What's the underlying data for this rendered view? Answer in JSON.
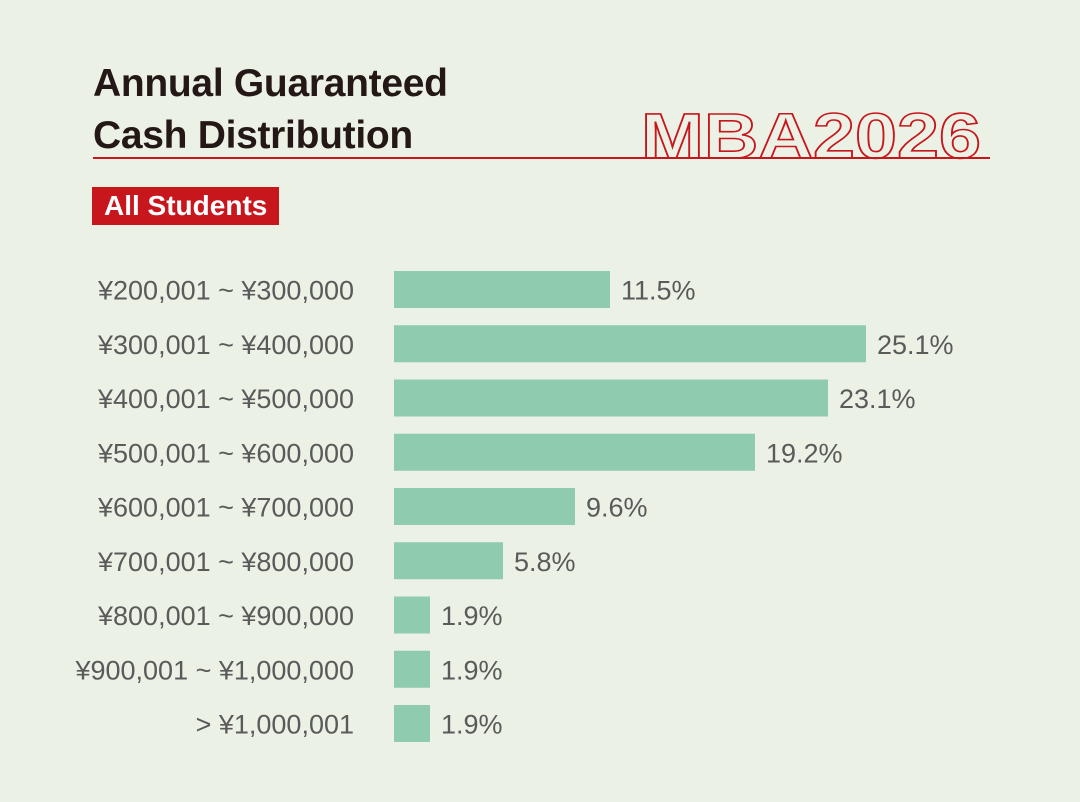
{
  "header": {
    "title_line1": "Annual Guaranteed",
    "title_line2": "Cash Distribution",
    "watermark": "MBA2026",
    "badge": "All Students"
  },
  "colors": {
    "background": "#ecf1e5",
    "bar": "#8fcbad",
    "accent": "#c8161d",
    "label_text": "#5a5a5a",
    "title_text": "#231815"
  },
  "chart_data": {
    "type": "bar",
    "orientation": "horizontal",
    "categories": [
      "¥200,001 ~ ¥300,000",
      "¥300,001 ~ ¥400,000",
      "¥400,001 ~ ¥500,000",
      "¥500,001 ~ ¥600,000",
      "¥600,001 ~ ¥700,000",
      "¥700,001 ~ ¥800,000",
      "¥800,001 ~ ¥900,000",
      "¥900,001 ~ ¥1,000,000",
      "> ¥1,000,001"
    ],
    "values": [
      11.5,
      25.1,
      23.1,
      19.2,
      9.6,
      5.8,
      1.9,
      1.9,
      1.9
    ],
    "value_labels": [
      "11.5%",
      "25.1%",
      "23.1%",
      "19.2%",
      "9.6%",
      "5.8%",
      "1.9%",
      "1.9%",
      "1.9%"
    ],
    "unit": "%",
    "xlim": [
      0,
      25.1
    ],
    "grid": false,
    "legend": "none"
  }
}
